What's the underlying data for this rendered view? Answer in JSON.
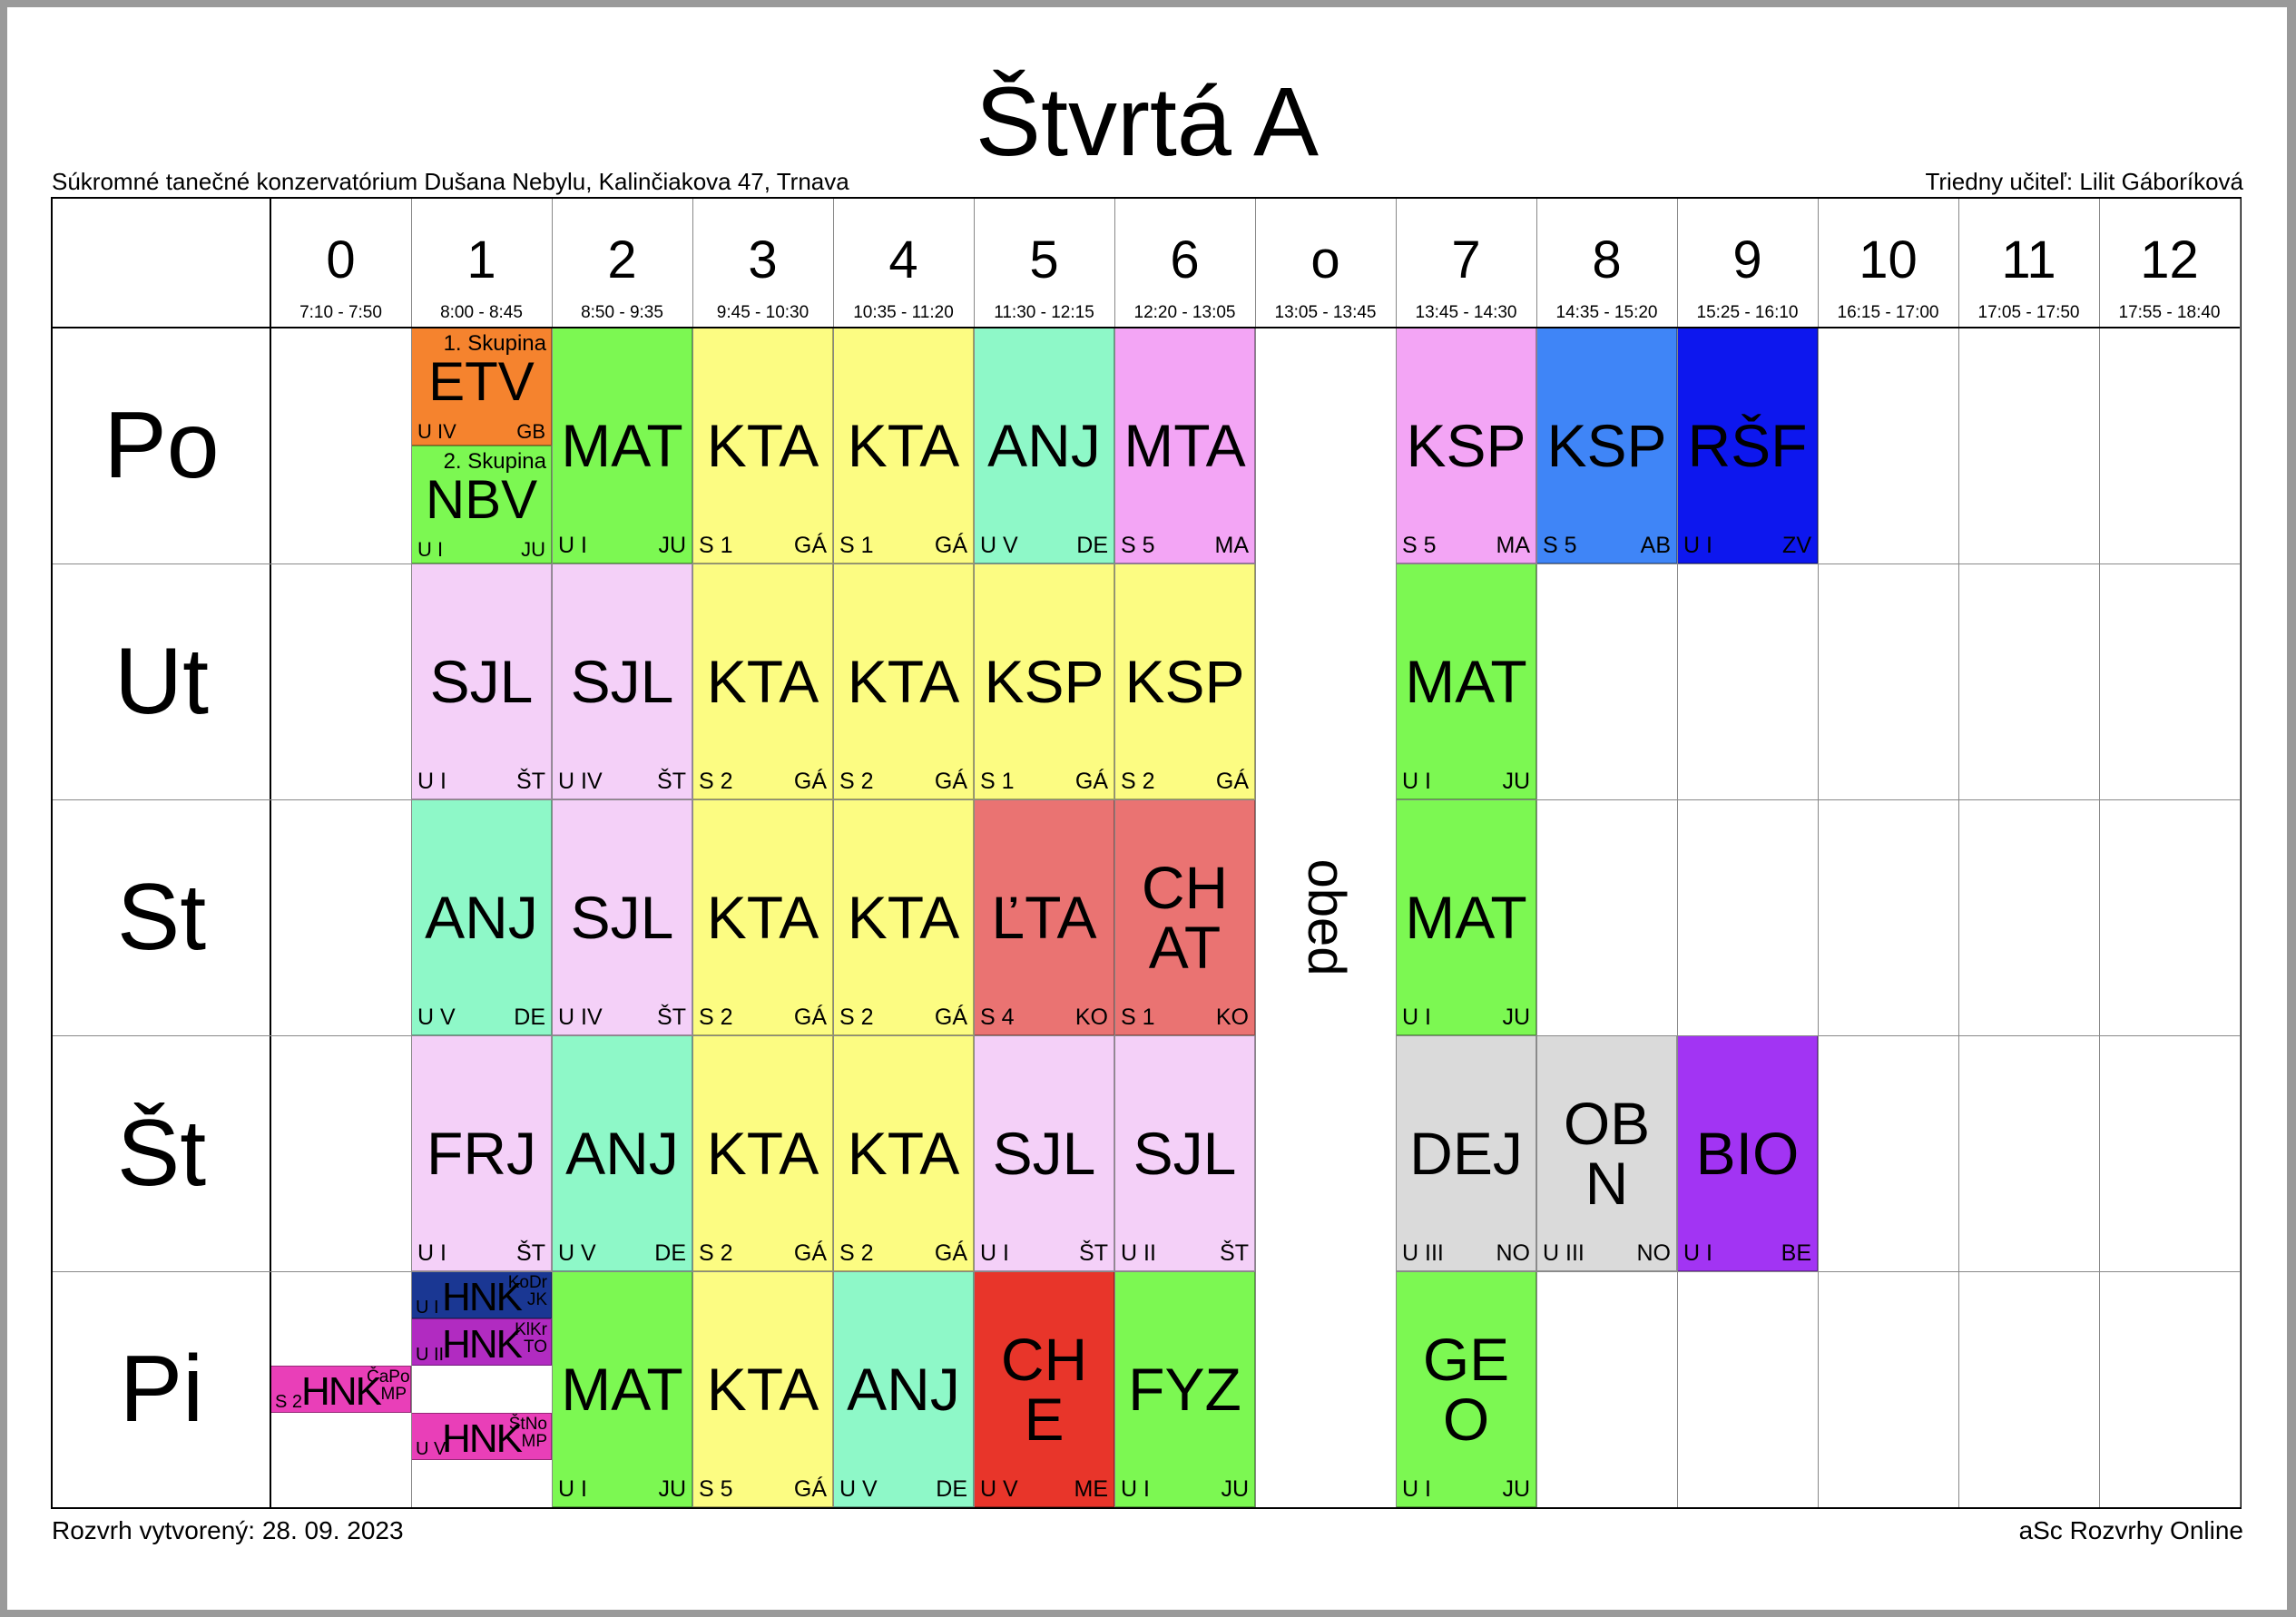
{
  "title": "Štvrtá A",
  "school": "Súkromné tanečné konzervatórium Dušana Nebylu, Kalinčiakova 47, Trnava",
  "teacher": "Triedny učiteľ: Lilit Gáboríková",
  "created": "Rozvrh vytvorený: 28. 09. 2023",
  "brand": "aSc Rozvrhy Online",
  "periods": [
    {
      "num": "0",
      "time": "7:10 - 7:50"
    },
    {
      "num": "1",
      "time": "8:00 - 8:45"
    },
    {
      "num": "2",
      "time": "8:50 - 9:35"
    },
    {
      "num": "3",
      "time": "9:45 - 10:30"
    },
    {
      "num": "4",
      "time": "10:35 - 11:20"
    },
    {
      "num": "5",
      "time": "11:30 - 12:15"
    },
    {
      "num": "6",
      "time": "12:20 - 13:05"
    },
    {
      "num": "o",
      "time": "13:05 - 13:45"
    },
    {
      "num": "7",
      "time": "13:45 - 14:30"
    },
    {
      "num": "8",
      "time": "14:35 - 15:20"
    },
    {
      "num": "9",
      "time": "15:25 - 16:10"
    },
    {
      "num": "10",
      "time": "16:15 - 17:00"
    },
    {
      "num": "11",
      "time": "17:05 - 17:50"
    },
    {
      "num": "12",
      "time": "17:55 - 18:40"
    }
  ],
  "days": [
    "Po",
    "Ut",
    "St",
    "Št",
    "Pi"
  ],
  "lunch": "obed",
  "colors": {
    "lightPink": "#f4d0f8",
    "yellow": "#fcfc82",
    "mint": "#8ef8c8",
    "green": "#7cf852",
    "pink": "#f3a5f5",
    "orange": "#f5832e",
    "blue": "#3f85f7",
    "navy": "#0d17ee",
    "salmon": "#ea7372",
    "red": "#e8352a",
    "gray": "#dadada",
    "purple": "#a234f3",
    "darkNavy": "#1a3793",
    "magenta": "#b12bc1",
    "hotPink": "#e93fb8"
  },
  "lessons": [
    {
      "day": 0,
      "period": 1,
      "subject": "ETV",
      "room": "U IV",
      "teacher": "GB",
      "group": "1. Skupina",
      "color": "#f5832e",
      "part": "top"
    },
    {
      "day": 0,
      "period": 1,
      "subject": "NBV",
      "room": "U I",
      "teacher": "JU",
      "group": "2. Skupina",
      "color": "#7cf852",
      "part": "bottom"
    },
    {
      "day": 0,
      "period": 2,
      "subject": "MAT",
      "room": "U I",
      "teacher": "JU",
      "color": "#7cf852"
    },
    {
      "day": 0,
      "period": 3,
      "subject": "KTA",
      "room": "S 1",
      "teacher": "GÁ",
      "color": "#fcfc82"
    },
    {
      "day": 0,
      "period": 4,
      "subject": "KTA",
      "room": "S 1",
      "teacher": "GÁ",
      "color": "#fcfc82"
    },
    {
      "day": 0,
      "period": 5,
      "subject": "ANJ",
      "room": "U V",
      "teacher": "DE",
      "color": "#8ef8c8"
    },
    {
      "day": 0,
      "period": 6,
      "subject": "MTA",
      "room": "S 5",
      "teacher": "MA",
      "color": "#f3a5f5"
    },
    {
      "day": 0,
      "period": 8,
      "subject": "KSP",
      "room": "S 5",
      "teacher": "MA",
      "color": "#f3a5f5"
    },
    {
      "day": 0,
      "period": 9,
      "subject": "KSP",
      "room": "S 5",
      "teacher": "AB",
      "color": "#3f85f7"
    },
    {
      "day": 0,
      "period": 10,
      "subject": "RŠF",
      "room": "U I",
      "teacher": "ZV",
      "color": "#0d17ee"
    },
    {
      "day": 1,
      "period": 1,
      "subject": "SJL",
      "room": "U I",
      "teacher": "ŠT",
      "color": "#f4d0f8"
    },
    {
      "day": 1,
      "period": 2,
      "subject": "SJL",
      "room": "U IV",
      "teacher": "ŠT",
      "color": "#f4d0f8"
    },
    {
      "day": 1,
      "period": 3,
      "subject": "KTA",
      "room": "S 2",
      "teacher": "GÁ",
      "color": "#fcfc82"
    },
    {
      "day": 1,
      "period": 4,
      "subject": "KTA",
      "room": "S 2",
      "teacher": "GÁ",
      "color": "#fcfc82"
    },
    {
      "day": 1,
      "period": 5,
      "subject": "KSP",
      "room": "S 1",
      "teacher": "GÁ",
      "color": "#fcfc82"
    },
    {
      "day": 1,
      "period": 6,
      "subject": "KSP",
      "room": "S 2",
      "teacher": "GÁ",
      "color": "#fcfc82"
    },
    {
      "day": 1,
      "period": 8,
      "subject": "MAT",
      "room": "U I",
      "teacher": "JU",
      "color": "#7cf852"
    },
    {
      "day": 2,
      "period": 1,
      "subject": "ANJ",
      "room": "U V",
      "teacher": "DE",
      "color": "#8ef8c8"
    },
    {
      "day": 2,
      "period": 2,
      "subject": "SJL",
      "room": "U IV",
      "teacher": "ŠT",
      "color": "#f4d0f8"
    },
    {
      "day": 2,
      "period": 3,
      "subject": "KTA",
      "room": "S 2",
      "teacher": "GÁ",
      "color": "#fcfc82"
    },
    {
      "day": 2,
      "period": 4,
      "subject": "KTA",
      "room": "S 2",
      "teacher": "GÁ",
      "color": "#fcfc82"
    },
    {
      "day": 2,
      "period": 5,
      "subject": "ĽTA",
      "room": "S 4",
      "teacher": "KO",
      "color": "#ea7372"
    },
    {
      "day": 2,
      "period": 6,
      "subject": "CHAT",
      "line1": "CH",
      "line2": "AT",
      "room": "S 1",
      "teacher": "KO",
      "color": "#ea7372"
    },
    {
      "day": 2,
      "period": 8,
      "subject": "MAT",
      "room": "U I",
      "teacher": "JU",
      "color": "#7cf852"
    },
    {
      "day": 3,
      "period": 1,
      "subject": "FRJ",
      "room": "U I",
      "teacher": "ŠT",
      "color": "#f4d0f8"
    },
    {
      "day": 3,
      "period": 2,
      "subject": "ANJ",
      "room": "U V",
      "teacher": "DE",
      "color": "#8ef8c8"
    },
    {
      "day": 3,
      "period": 3,
      "subject": "KTA",
      "room": "S 2",
      "teacher": "GÁ",
      "color": "#fcfc82"
    },
    {
      "day": 3,
      "period": 4,
      "subject": "KTA",
      "room": "S 2",
      "teacher": "GÁ",
      "color": "#fcfc82"
    },
    {
      "day": 3,
      "period": 5,
      "subject": "SJL",
      "room": "U I",
      "teacher": "ŠT",
      "color": "#f4d0f8"
    },
    {
      "day": 3,
      "period": 6,
      "subject": "SJL",
      "room": "U II",
      "teacher": "ŠT",
      "color": "#f4d0f8"
    },
    {
      "day": 3,
      "period": 8,
      "subject": "DEJ",
      "room": "U III",
      "teacher": "NO",
      "color": "#dadada"
    },
    {
      "day": 3,
      "period": 9,
      "subject": "OBN",
      "line1": "OB",
      "line2": "N",
      "room": "U III",
      "teacher": "NO",
      "color": "#dadada"
    },
    {
      "day": 3,
      "period": 10,
      "subject": "BIO",
      "room": "U I",
      "teacher": "BE",
      "color": "#a234f3"
    },
    {
      "day": 4,
      "period": 0,
      "subject": "HNK",
      "room": "S 2",
      "teacher": "ČaPo MP",
      "color": "#e93fb8",
      "slot": "p0"
    },
    {
      "day": 4,
      "period": 1,
      "subject": "HNK",
      "room": "U I",
      "teacher": "KoDr JK",
      "color": "#1a3793",
      "slot": "s1"
    },
    {
      "day": 4,
      "period": 1,
      "subject": "HNK",
      "room": "U II",
      "teacher": "KlKr TO",
      "color": "#b12bc1",
      "slot": "s2"
    },
    {
      "day": 4,
      "period": 1,
      "subject": "HNK",
      "room": "U V",
      "teacher": "ŠtNo MP",
      "color": "#e93fb8",
      "slot": "s4"
    },
    {
      "day": 4,
      "period": 2,
      "subject": "MAT",
      "room": "U I",
      "teacher": "JU",
      "color": "#7cf852"
    },
    {
      "day": 4,
      "period": 3,
      "subject": "KTA",
      "room": "S 5",
      "teacher": "GÁ",
      "color": "#fcfc82"
    },
    {
      "day": 4,
      "period": 4,
      "subject": "ANJ",
      "room": "U V",
      "teacher": "DE",
      "color": "#8ef8c8"
    },
    {
      "day": 4,
      "period": 5,
      "subject": "CHE",
      "line1": "CH",
      "line2": "E",
      "room": "U V",
      "teacher": "ME",
      "color": "#e8352a"
    },
    {
      "day": 4,
      "period": 6,
      "subject": "FYZ",
      "room": "U I",
      "teacher": "JU",
      "color": "#7cf852"
    },
    {
      "day": 4,
      "period": 8,
      "subject": "GEO",
      "line1": "GE",
      "line2": "O",
      "room": "U I",
      "teacher": "JU",
      "color": "#7cf852"
    }
  ]
}
